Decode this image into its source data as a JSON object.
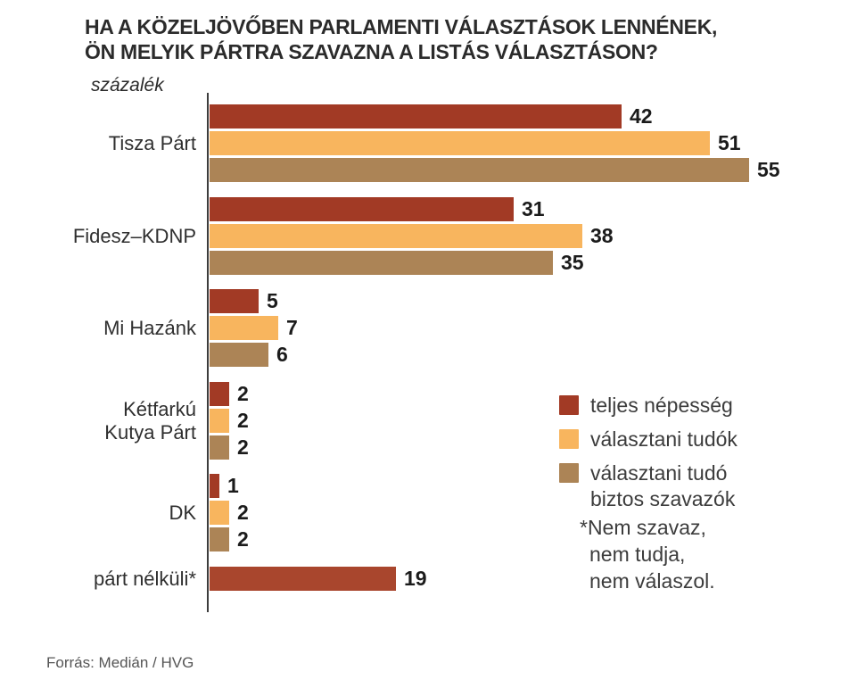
{
  "header": {
    "title_line1": "HA A KÖZELJÖVŐBEN PARLAMENTI VÁLASZTÁSOK LENNÉNEK,",
    "title_line2": "ÖN MELYIK PÁRTRA SZAVAZNA A LISTÁS VÁLASZTÁSON?",
    "unit_label": "százalék"
  },
  "chart_data": {
    "type": "bar",
    "orientation": "horizontal",
    "unit": "százalék",
    "categories": [
      "Tisza Párt",
      "Fidesz–KDNP",
      "Mi Hazánk",
      "Kétfarkú\nKutya Párt",
      "DK",
      "párt nélküli*"
    ],
    "series": [
      {
        "name": "teljes népesség",
        "color": "#A23A25",
        "values": [
          42,
          31,
          5,
          2,
          1,
          19
        ],
        "color_overrides": {
          "5": "#A9462D"
        }
      },
      {
        "name": "választani tudók",
        "color": "#F8B55E",
        "values": [
          51,
          38,
          7,
          2,
          2,
          null
        ]
      },
      {
        "name": "választani tudó biztos szavazók",
        "color": "#AC8456",
        "values": [
          55,
          35,
          6,
          2,
          2,
          null
        ]
      }
    ],
    "xlim": [
      0,
      55
    ],
    "value_labels": true,
    "grid": false,
    "legend_position": "right-middle"
  },
  "legend": {
    "items": [
      {
        "label_lines": [
          "teljes népesség"
        ]
      },
      {
        "label_lines": [
          "választani tudók"
        ]
      },
      {
        "label_lines": [
          "választani tudó",
          "biztos szavazók"
        ]
      }
    ]
  },
  "note": {
    "lines": [
      "*Nem szavaz,",
      "nem tudja,",
      "nem válaszol."
    ]
  },
  "footer": {
    "source": "Forrás: Medián / HVG"
  },
  "colors": {
    "series_dark_red": "#A23A25",
    "series_orange": "#F8B55E",
    "series_tan": "#AC8456",
    "no_party_red": "#A9462D",
    "title_text": "#2B2B2B",
    "axis_line": "#3D3D3D"
  }
}
